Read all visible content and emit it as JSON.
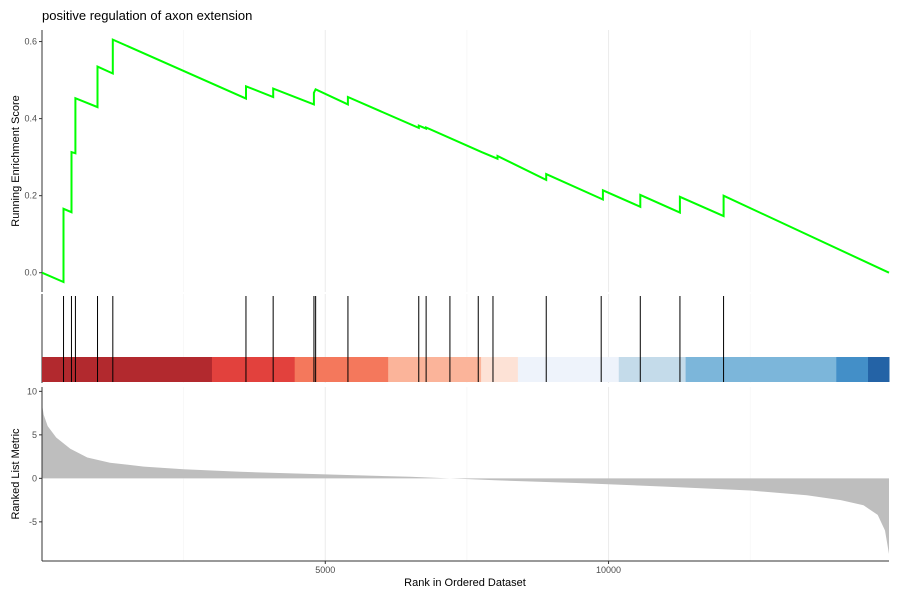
{
  "chart_data": [
    {
      "type": "line",
      "title": "positive regulation of axon extension",
      "ylabel": "Running Enrichment Score",
      "xlim": [
        0,
        14950
      ],
      "ylim": [
        -0.05,
        0.63
      ],
      "yticks": [
        0.0,
        0.2,
        0.4,
        0.6
      ],
      "ytick_labels": [
        "0.0",
        "0.2",
        "0.4",
        "0.6"
      ],
      "grid": "vertical major lines",
      "line_color": "#00ff00",
      "series": [
        {
          "x": [
            0,
            380,
            380,
            520,
            520,
            590,
            590,
            980,
            980,
            1250,
            1250,
            3600,
            3600,
            4080,
            4080,
            4800,
            4800,
            4830,
            4830,
            5400,
            5400,
            6650,
            6650,
            6780,
            6780,
            7760,
            7760,
            8040,
            8040,
            8900,
            8900,
            9900,
            9900,
            10560,
            10560,
            11260,
            11260,
            12030,
            12030,
            14950
          ],
          "y": [
            0.0,
            -0.024,
            0.166,
            0.157,
            0.313,
            0.31,
            0.453,
            0.43,
            0.535,
            0.517,
            0.605,
            0.452,
            0.484,
            0.456,
            0.478,
            0.437,
            0.467,
            0.476,
            0.476,
            0.437,
            0.456,
            0.376,
            0.382,
            0.374,
            0.377,
            0.313,
            0.313,
            0.296,
            0.303,
            0.241,
            0.256,
            0.19,
            0.214,
            0.171,
            0.202,
            0.156,
            0.197,
            0.147,
            0.2,
            0.0
          ]
        }
      ]
    },
    {
      "type": "other",
      "description_label": "hits",
      "hit_positions": [
        380,
        520,
        590,
        980,
        1250,
        3600,
        4080,
        4800,
        4830,
        5400,
        6650,
        6780,
        7200,
        7700,
        7960,
        8900,
        9870,
        10560,
        11260,
        12030
      ],
      "color_bands": [
        {
          "from": 0,
          "to": 3000,
          "color": "#b2292e"
        },
        {
          "from": 3000,
          "to": 4460,
          "color": "#e2413d"
        },
        {
          "from": 4460,
          "to": 6110,
          "color": "#f4785c"
        },
        {
          "from": 6110,
          "to": 7750,
          "color": "#fbb49a"
        },
        {
          "from": 7750,
          "to": 8400,
          "color": "#fde2d6"
        },
        {
          "from": 8400,
          "to": 10180,
          "color": "#eef3fb"
        },
        {
          "from": 10180,
          "to": 11360,
          "color": "#c4dbea"
        },
        {
          "from": 11360,
          "to": 14020,
          "color": "#7cb6da"
        },
        {
          "from": 14020,
          "to": 14580,
          "color": "#438fc8"
        },
        {
          "from": 14580,
          "to": 14950,
          "color": "#2463a6"
        }
      ]
    },
    {
      "type": "area",
      "xlabel": "Rank in Ordered Dataset",
      "ylabel": "Ranked List Metric",
      "xlim": [
        0,
        14950
      ],
      "ylim": [
        -9.5,
        10.5
      ],
      "xticks": [
        5000,
        10000
      ],
      "xtick_labels": [
        "5000",
        "10000"
      ],
      "yticks": [
        10,
        5,
        0,
        -5
      ],
      "ytick_labels": [
        "10",
        "5",
        "0",
        "-5"
      ],
      "fill_color": "#bebebe",
      "series": [
        {
          "x": [
            0,
            30,
            100,
            250,
            500,
            800,
            1200,
            1800,
            2500,
            3500,
            5000,
            6500,
            7200,
            8000,
            9500,
            11000,
            12500,
            13500,
            14100,
            14500,
            14750,
            14880,
            14950
          ],
          "y": [
            8.5,
            7.3,
            6.0,
            4.7,
            3.4,
            2.4,
            1.8,
            1.35,
            1.05,
            0.75,
            0.45,
            0.18,
            0.0,
            -0.22,
            -0.55,
            -0.95,
            -1.4,
            -1.95,
            -2.5,
            -3.1,
            -4.2,
            -6.0,
            -8.7
          ]
        }
      ]
    }
  ]
}
